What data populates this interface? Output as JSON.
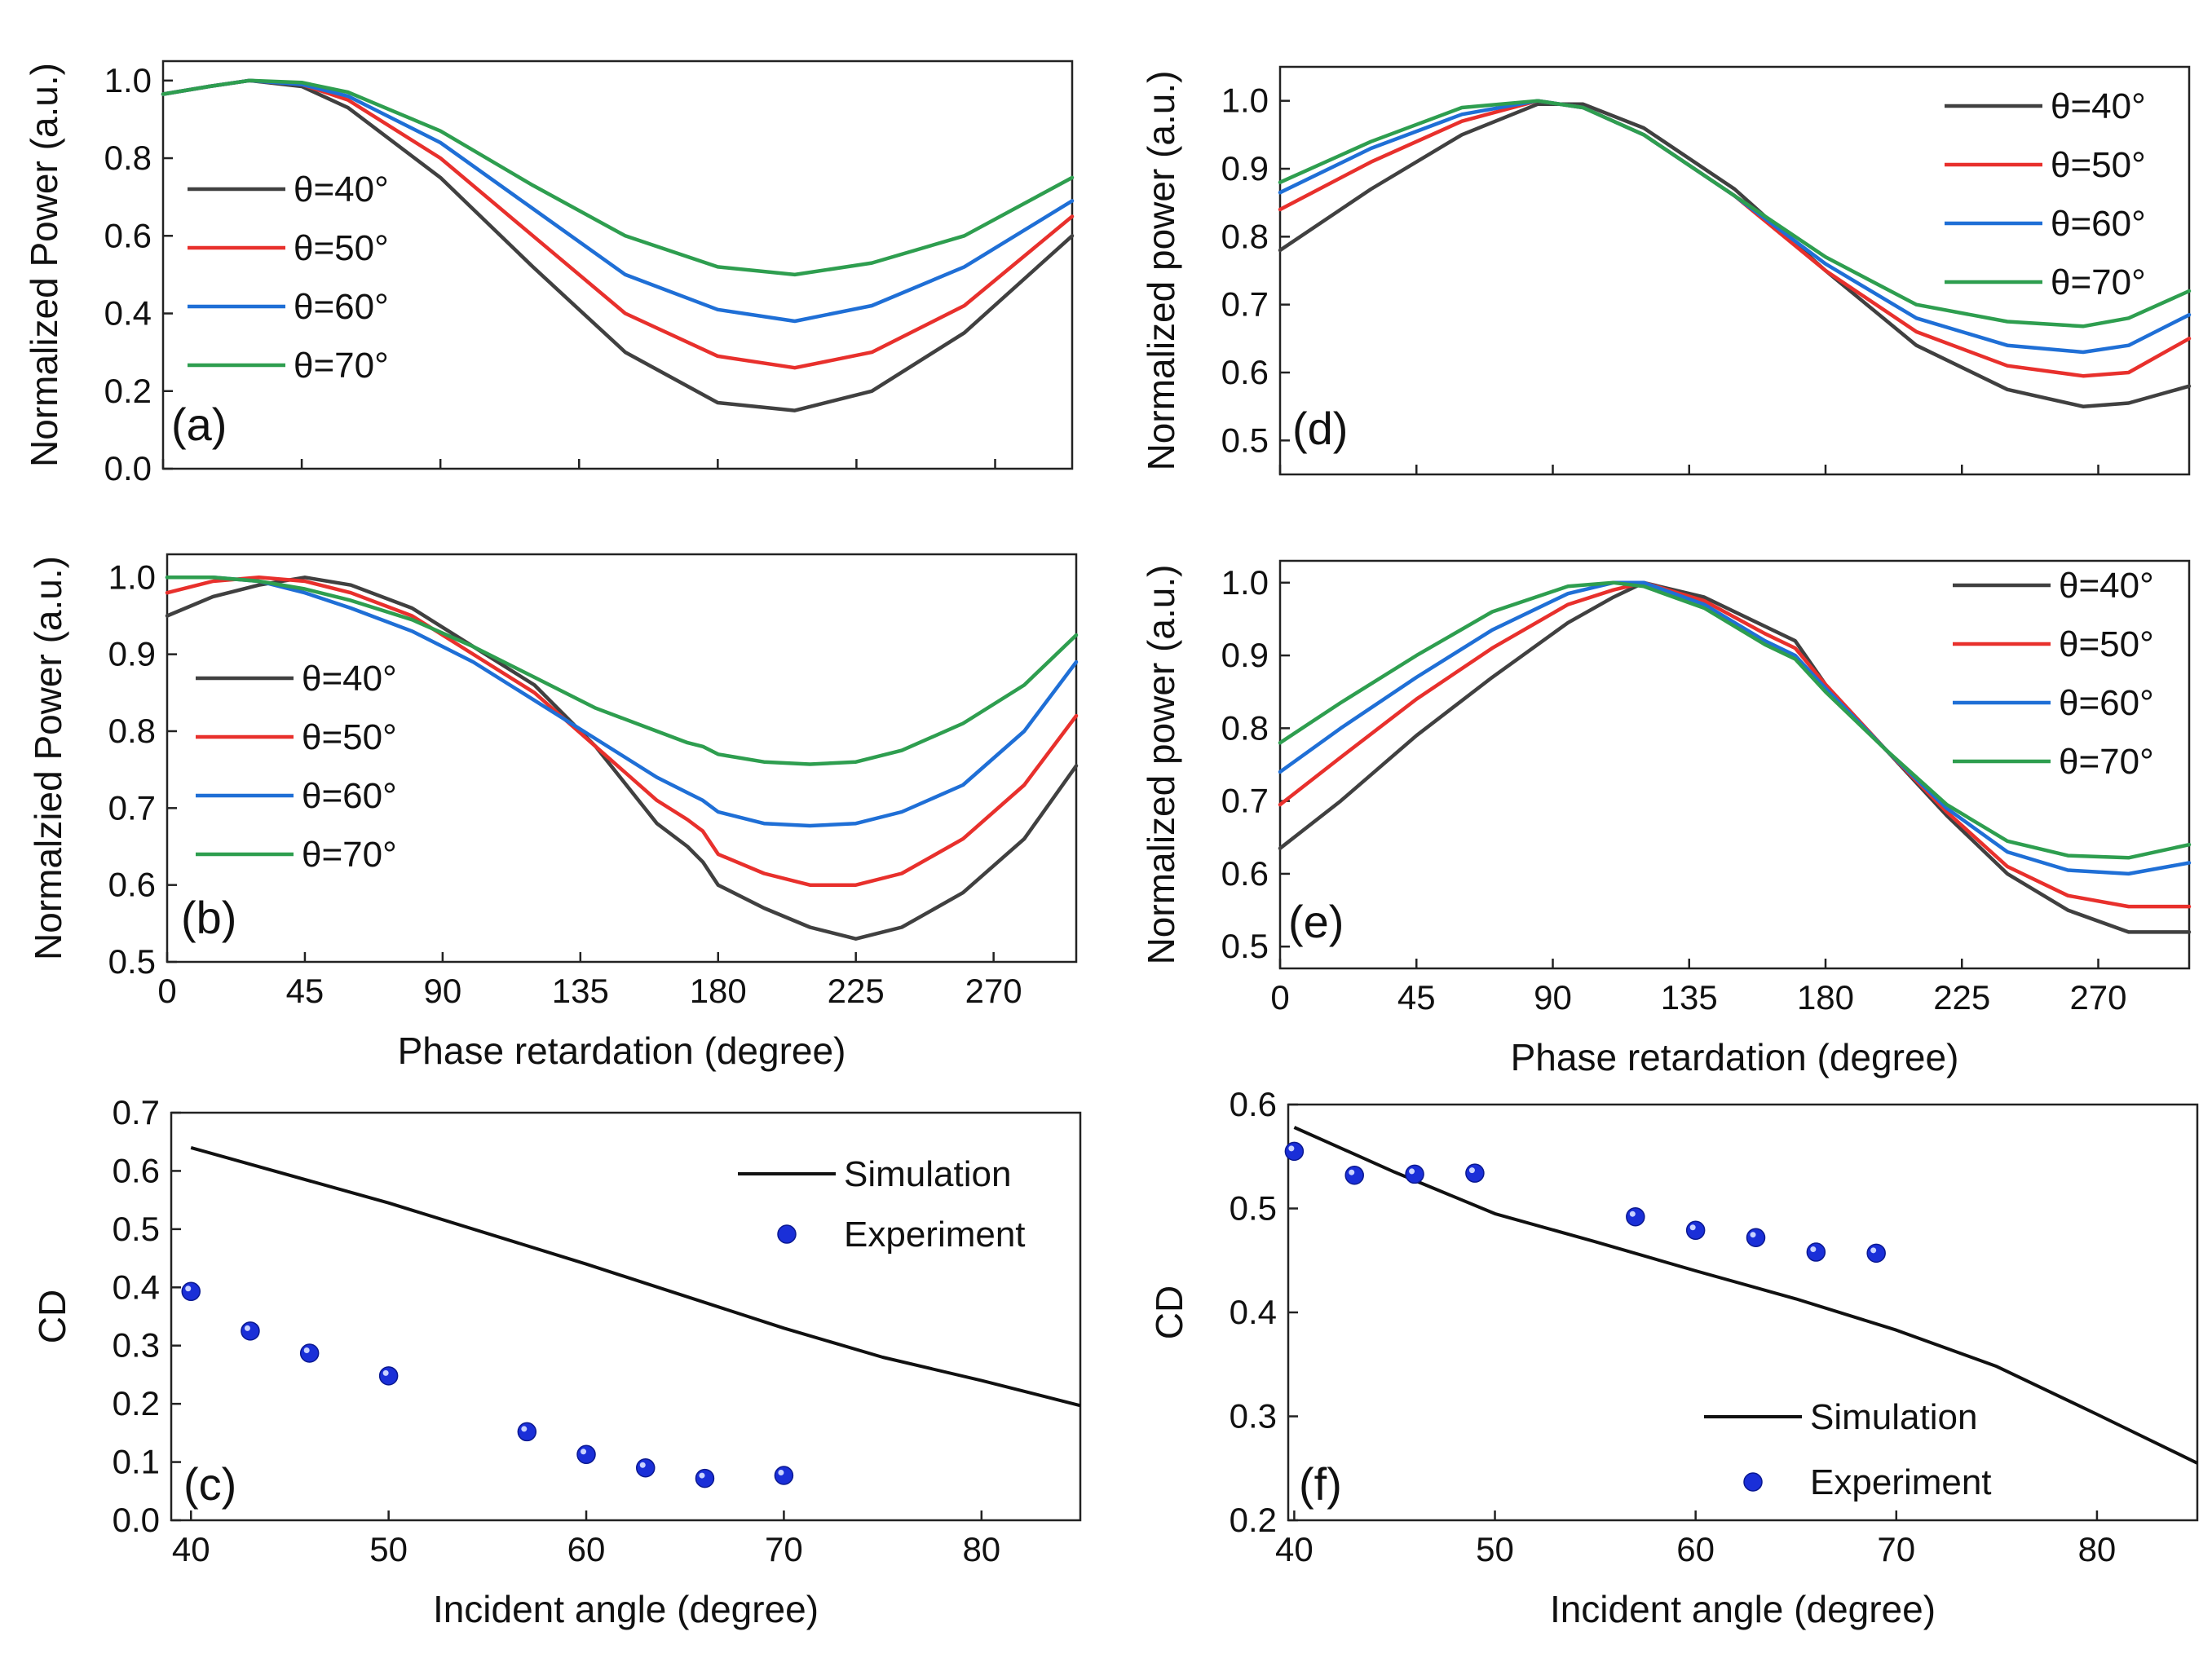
{
  "colors": {
    "theta_40": "#404040",
    "theta_50": "#e8302c",
    "theta_60": "#1f6fd6",
    "theta_70": "#2e9e4f",
    "simulation": "#111111",
    "experiment": "#1a2fd8"
  },
  "chart_data": [
    {
      "id": "a",
      "type": "line",
      "panel_label": "(a)",
      "xlabel": "",
      "ylabel": "Normalized Power (a.u.)",
      "xlim": [
        0,
        295
      ],
      "ylim": [
        0.0,
        1.05
      ],
      "xticks": [
        0,
        45,
        90,
        135,
        180,
        225,
        270
      ],
      "show_xtick_labels": false,
      "yticks": [
        0.0,
        0.2,
        0.4,
        0.6,
        0.8,
        1.0
      ],
      "ytick_labels": [
        "0.0",
        "0.2",
        "0.4",
        "0.6",
        "0.8",
        "1.0"
      ],
      "legend_position": "middle-left",
      "x": [
        0,
        15,
        28,
        45,
        60,
        90,
        120,
        150,
        180,
        205,
        230,
        260,
        295
      ],
      "series": [
        {
          "name": "θ=40°",
          "color_key": "theta_40",
          "values": [
            0.965,
            0.985,
            1.0,
            0.985,
            0.93,
            0.75,
            0.52,
            0.3,
            0.17,
            0.15,
            0.2,
            0.35,
            0.6
          ]
        },
        {
          "name": "θ=50°",
          "color_key": "theta_50",
          "values": [
            0.965,
            0.985,
            1.0,
            0.99,
            0.95,
            0.8,
            0.6,
            0.4,
            0.29,
            0.26,
            0.3,
            0.42,
            0.65
          ]
        },
        {
          "name": "θ=60°",
          "color_key": "theta_60",
          "values": [
            0.965,
            0.985,
            1.0,
            0.99,
            0.96,
            0.84,
            0.67,
            0.5,
            0.41,
            0.38,
            0.42,
            0.52,
            0.69
          ]
        },
        {
          "name": "θ=70°",
          "color_key": "theta_70",
          "values": [
            0.965,
            0.985,
            1.0,
            0.995,
            0.97,
            0.87,
            0.73,
            0.6,
            0.52,
            0.5,
            0.53,
            0.6,
            0.75
          ]
        }
      ]
    },
    {
      "id": "d",
      "type": "line",
      "panel_label": "(d)",
      "xlabel": "",
      "ylabel": "Normalized power (a.u.)",
      "xlim": [
        0,
        300
      ],
      "ylim": [
        0.45,
        1.05
      ],
      "xticks": [
        0,
        45,
        90,
        135,
        180,
        225,
        270
      ],
      "show_xtick_labels": false,
      "yticks": [
        0.5,
        0.6,
        0.7,
        0.8,
        0.9,
        1.0
      ],
      "ytick_labels": [
        "0.5",
        "0.6",
        "0.7",
        "0.8",
        "0.9",
        "1.0"
      ],
      "legend_position": "top-right",
      "x": [
        0,
        30,
        60,
        85,
        100,
        120,
        150,
        180,
        210,
        240,
        265,
        280,
        300
      ],
      "series": [
        {
          "name": "θ=40°",
          "color_key": "theta_40",
          "values": [
            0.78,
            0.87,
            0.95,
            0.995,
            0.995,
            0.96,
            0.87,
            0.75,
            0.64,
            0.575,
            0.55,
            0.555,
            0.58
          ]
        },
        {
          "name": "θ=50°",
          "color_key": "theta_50",
          "values": [
            0.84,
            0.91,
            0.97,
            1.0,
            0.99,
            0.95,
            0.86,
            0.75,
            0.66,
            0.61,
            0.595,
            0.6,
            0.65
          ]
        },
        {
          "name": "θ=60°",
          "color_key": "theta_60",
          "values": [
            0.865,
            0.93,
            0.98,
            1.0,
            0.99,
            0.95,
            0.86,
            0.76,
            0.68,
            0.64,
            0.63,
            0.64,
            0.685
          ]
        },
        {
          "name": "θ=70°",
          "color_key": "theta_70",
          "values": [
            0.88,
            0.94,
            0.99,
            1.0,
            0.99,
            0.95,
            0.86,
            0.77,
            0.7,
            0.675,
            0.668,
            0.68,
            0.72
          ]
        }
      ]
    },
    {
      "id": "b",
      "type": "line",
      "panel_label": "(b)",
      "xlabel": "Phase retardation (degree)",
      "ylabel": "Normalzied Power (a.u.)",
      "xlim": [
        0,
        297
      ],
      "ylim": [
        0.5,
        1.03
      ],
      "xticks": [
        0,
        45,
        90,
        135,
        180,
        225,
        270
      ],
      "show_xtick_labels": true,
      "xtick_labels": [
        "0",
        "45",
        "90",
        "135",
        "180",
        "225",
        "270"
      ],
      "yticks": [
        0.5,
        0.6,
        0.7,
        0.8,
        0.9,
        1.0
      ],
      "ytick_labels": [
        "0.5",
        "0.6",
        "0.7",
        "0.8",
        "0.9",
        "1.0"
      ],
      "legend_position": "middle-left",
      "x": [
        0,
        15,
        30,
        45,
        60,
        80,
        100,
        120,
        140,
        160,
        170,
        175,
        180,
        195,
        210,
        225,
        240,
        260,
        280,
        297
      ],
      "series": [
        {
          "name": "θ=40°",
          "color_key": "theta_40",
          "values": [
            0.95,
            0.975,
            0.99,
            1.0,
            0.99,
            0.96,
            0.91,
            0.86,
            0.78,
            0.68,
            0.65,
            0.63,
            0.6,
            0.57,
            0.545,
            0.53,
            0.545,
            0.59,
            0.66,
            0.755
          ]
        },
        {
          "name": "θ=50°",
          "color_key": "theta_50",
          "values": [
            0.98,
            0.995,
            1.0,
            0.995,
            0.98,
            0.95,
            0.9,
            0.85,
            0.78,
            0.71,
            0.685,
            0.67,
            0.64,
            0.615,
            0.6,
            0.6,
            0.615,
            0.66,
            0.73,
            0.82
          ]
        },
        {
          "name": "θ=60°",
          "color_key": "theta_60",
          "values": [
            1.0,
            1.0,
            0.995,
            0.98,
            0.96,
            0.93,
            0.89,
            0.84,
            0.79,
            0.74,
            0.72,
            0.71,
            0.695,
            0.68,
            0.677,
            0.68,
            0.695,
            0.73,
            0.8,
            0.89
          ]
        },
        {
          "name": "θ=70°",
          "color_key": "theta_70",
          "values": [
            1.0,
            1.0,
            0.995,
            0.985,
            0.97,
            0.945,
            0.91,
            0.87,
            0.83,
            0.8,
            0.785,
            0.78,
            0.77,
            0.76,
            0.757,
            0.76,
            0.775,
            0.81,
            0.86,
            0.925
          ]
        }
      ]
    },
    {
      "id": "e",
      "type": "line",
      "panel_label": "(e)",
      "xlabel": "Phase retardation (degree)",
      "ylabel": "Normalized power (a.u.)",
      "xlim": [
        0,
        300
      ],
      "ylim": [
        0.47,
        1.03
      ],
      "xticks": [
        0,
        45,
        90,
        135,
        180,
        225,
        270
      ],
      "show_xtick_labels": true,
      "xtick_labels": [
        "0",
        "45",
        "90",
        "135",
        "180",
        "225",
        "270"
      ],
      "yticks": [
        0.5,
        0.6,
        0.7,
        0.8,
        0.9,
        1.0
      ],
      "ytick_labels": [
        "0.5",
        "0.6",
        "0.7",
        "0.8",
        "0.9",
        "1.0"
      ],
      "legend_position": "top-right",
      "x": [
        0,
        20,
        45,
        70,
        95,
        110,
        120,
        140,
        160,
        170,
        180,
        200,
        220,
        240,
        260,
        280,
        300
      ],
      "series": [
        {
          "name": "θ=40°",
          "color_key": "theta_40",
          "values": [
            0.635,
            0.7,
            0.79,
            0.87,
            0.945,
            0.98,
            1.0,
            0.98,
            0.94,
            0.92,
            0.86,
            0.77,
            0.68,
            0.6,
            0.55,
            0.52,
            0.52
          ]
        },
        {
          "name": "θ=50°",
          "color_key": "theta_50",
          "values": [
            0.695,
            0.76,
            0.84,
            0.91,
            0.97,
            0.99,
            1.0,
            0.975,
            0.93,
            0.91,
            0.86,
            0.77,
            0.685,
            0.61,
            0.57,
            0.555,
            0.555
          ]
        },
        {
          "name": "θ=60°",
          "color_key": "theta_60",
          "values": [
            0.74,
            0.8,
            0.87,
            0.935,
            0.985,
            1.0,
            1.0,
            0.97,
            0.92,
            0.9,
            0.855,
            0.77,
            0.69,
            0.63,
            0.605,
            0.6,
            0.615
          ]
        },
        {
          "name": "θ=70°",
          "color_key": "theta_70",
          "values": [
            0.78,
            0.835,
            0.9,
            0.96,
            0.995,
            1.0,
            0.995,
            0.965,
            0.915,
            0.895,
            0.85,
            0.77,
            0.695,
            0.645,
            0.625,
            0.622,
            0.64
          ]
        }
      ]
    },
    {
      "id": "c",
      "type": "line+scatter",
      "panel_label": "(c)",
      "xlabel": "Incident angle (degree)",
      "ylabel": "CD",
      "xlim": [
        39,
        85
      ],
      "ylim": [
        0.0,
        0.7
      ],
      "xticks": [
        40,
        50,
        60,
        70,
        80
      ],
      "xtick_labels": [
        "40",
        "50",
        "60",
        "70",
        "80"
      ],
      "show_xtick_labels": true,
      "yticks": [
        0.0,
        0.1,
        0.2,
        0.3,
        0.4,
        0.5,
        0.6,
        0.7
      ],
      "ytick_labels": [
        "0.0",
        "0.1",
        "0.2",
        "0.3",
        "0.4",
        "0.5",
        "0.6",
        "0.7"
      ],
      "legend_position": "top-right",
      "simulation": {
        "name": "Simulation",
        "x": [
          40,
          50,
          60,
          70,
          75,
          80,
          85
        ],
        "y": [
          0.64,
          0.545,
          0.44,
          0.33,
          0.28,
          0.24,
          0.197
        ]
      },
      "experiment": {
        "name": "Experiment",
        "x": [
          40,
          43,
          46,
          50,
          57,
          60,
          63,
          66,
          70
        ],
        "y": [
          0.393,
          0.325,
          0.287,
          0.248,
          0.152,
          0.113,
          0.09,
          0.072,
          0.077
        ]
      }
    },
    {
      "id": "f",
      "type": "line+scatter",
      "panel_label": "(f)",
      "xlabel": "Incident angle (degree)",
      "ylabel": "CD",
      "xlim": [
        39.7,
        85
      ],
      "ylim": [
        0.2,
        0.6
      ],
      "xticks": [
        40,
        50,
        60,
        70,
        80
      ],
      "xtick_labels": [
        "40",
        "50",
        "60",
        "70",
        "80"
      ],
      "show_xtick_labels": true,
      "yticks": [
        0.2,
        0.3,
        0.4,
        0.5,
        0.6
      ],
      "ytick_labels": [
        "0.2",
        "0.3",
        "0.4",
        "0.5",
        "0.6"
      ],
      "legend_position": "bottom-center",
      "simulation": {
        "name": "Simulation",
        "x": [
          40,
          45,
          50,
          55,
          60,
          65,
          70,
          75,
          80,
          85
        ],
        "y": [
          0.578,
          0.535,
          0.495,
          0.468,
          0.44,
          0.413,
          0.383,
          0.348,
          0.302,
          0.255
        ]
      },
      "experiment": {
        "name": "Experiment",
        "x": [
          40,
          43,
          46,
          49,
          57,
          60,
          63,
          66,
          69
        ],
        "y": [
          0.555,
          0.532,
          0.533,
          0.534,
          0.492,
          0.479,
          0.472,
          0.458,
          0.457
        ]
      }
    }
  ]
}
